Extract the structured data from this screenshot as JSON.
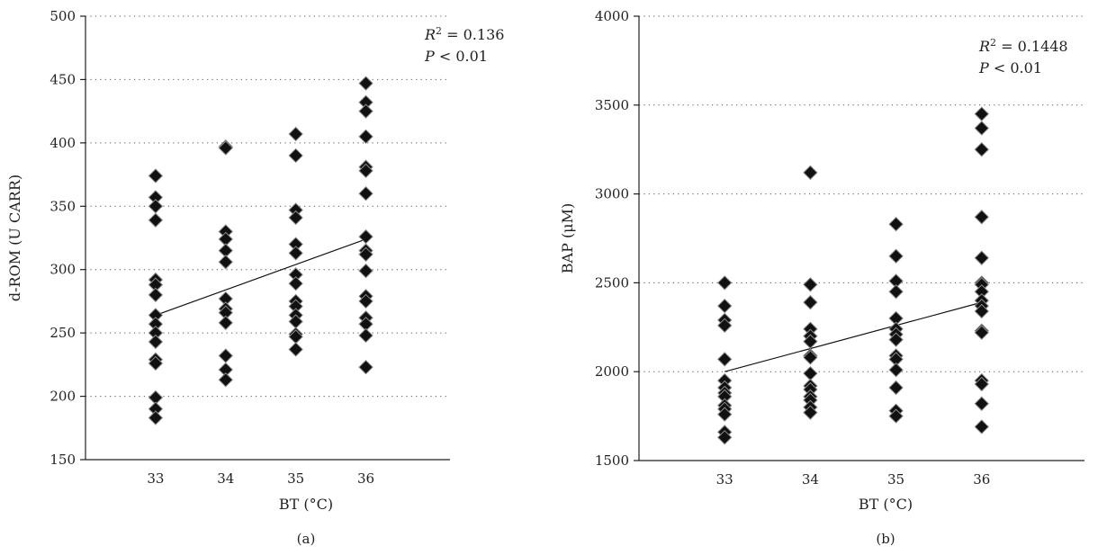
{
  "chart_data": [
    {
      "panel_label": "(a)",
      "type": "scatter",
      "xlabel": "BT (°C)",
      "ylabel": "d-ROM (U CARR)",
      "xlim": [
        32,
        37.2
      ],
      "ylim": [
        150,
        500
      ],
      "x_ticks": [
        33,
        34,
        35,
        36
      ],
      "y_ticks": [
        150,
        200,
        250,
        300,
        350,
        400,
        450,
        500
      ],
      "grid": "horizontal dotted",
      "annotation": {
        "r2_label": "R",
        "r2_sup": "2",
        "r2_value": " = 0.136",
        "p_label": "P",
        "p_value": " < 0.01"
      },
      "points": [
        [
          33,
          374
        ],
        [
          33,
          357
        ],
        [
          33,
          350
        ],
        [
          33,
          339
        ],
        [
          33,
          292
        ],
        [
          33,
          288
        ],
        [
          33,
          280
        ],
        [
          33,
          264
        ],
        [
          33,
          257
        ],
        [
          33,
          250
        ],
        [
          33,
          243
        ],
        [
          33,
          229
        ],
        [
          33,
          226
        ],
        [
          33,
          199
        ],
        [
          33,
          190
        ],
        [
          33,
          183
        ],
        [
          34,
          397
        ],
        [
          34,
          396
        ],
        [
          34,
          330
        ],
        [
          34,
          324
        ],
        [
          34,
          315
        ],
        [
          34,
          306
        ],
        [
          34,
          277
        ],
        [
          34,
          269
        ],
        [
          34,
          266
        ],
        [
          34,
          258
        ],
        [
          34,
          232
        ],
        [
          34,
          221
        ],
        [
          34,
          213
        ],
        [
          35,
          407
        ],
        [
          35,
          390
        ],
        [
          35,
          347
        ],
        [
          35,
          341
        ],
        [
          35,
          320
        ],
        [
          35,
          313
        ],
        [
          35,
          296
        ],
        [
          35,
          289
        ],
        [
          35,
          275
        ],
        [
          35,
          271
        ],
        [
          35,
          264
        ],
        [
          35,
          259
        ],
        [
          35,
          249
        ],
        [
          35,
          247
        ],
        [
          35,
          237
        ],
        [
          36,
          447
        ],
        [
          36,
          432
        ],
        [
          36,
          425
        ],
        [
          36,
          405
        ],
        [
          36,
          381
        ],
        [
          36,
          378
        ],
        [
          36,
          360
        ],
        [
          36,
          326
        ],
        [
          36,
          315
        ],
        [
          36,
          312
        ],
        [
          36,
          299
        ],
        [
          36,
          279
        ],
        [
          36,
          275
        ],
        [
          36,
          262
        ],
        [
          36,
          257
        ],
        [
          36,
          248
        ],
        [
          36,
          223
        ]
      ],
      "trend_line": [
        [
          33,
          264
        ],
        [
          36,
          324
        ]
      ]
    },
    {
      "panel_label": "(b)",
      "type": "scatter",
      "xlabel": "BT (°C)",
      "ylabel": "BAP (μM)",
      "xlim": [
        32,
        37.2
      ],
      "ylim": [
        1500,
        4000
      ],
      "x_ticks": [
        33,
        34,
        35,
        36
      ],
      "y_ticks": [
        1500,
        2000,
        2500,
        3000,
        3500,
        4000
      ],
      "grid": "horizontal dotted",
      "annotation": {
        "r2_label": "R",
        "r2_sup": "2",
        "r2_value": " = 0.1448",
        "p_label": "P",
        "p_value": " < 0.01"
      },
      "points": [
        [
          33,
          2500
        ],
        [
          33,
          2370
        ],
        [
          33,
          2290
        ],
        [
          33,
          2260
        ],
        [
          33,
          2070
        ],
        [
          33,
          1950
        ],
        [
          33,
          1910
        ],
        [
          33,
          1880
        ],
        [
          33,
          1860
        ],
        [
          33,
          1810
        ],
        [
          33,
          1790
        ],
        [
          33,
          1760
        ],
        [
          33,
          1660
        ],
        [
          33,
          1630
        ],
        [
          34,
          3120
        ],
        [
          34,
          2490
        ],
        [
          34,
          2390
        ],
        [
          34,
          2240
        ],
        [
          34,
          2200
        ],
        [
          34,
          2170
        ],
        [
          34,
          2090
        ],
        [
          34,
          2080
        ],
        [
          34,
          1990
        ],
        [
          34,
          1920
        ],
        [
          34,
          1900
        ],
        [
          34,
          1860
        ],
        [
          34,
          1840
        ],
        [
          34,
          1800
        ],
        [
          34,
          1770
        ],
        [
          35,
          2830
        ],
        [
          35,
          2650
        ],
        [
          35,
          2510
        ],
        [
          35,
          2450
        ],
        [
          35,
          2300
        ],
        [
          35,
          2240
        ],
        [
          35,
          2210
        ],
        [
          35,
          2180
        ],
        [
          35,
          2090
        ],
        [
          35,
          2070
        ],
        [
          35,
          2010
        ],
        [
          35,
          1910
        ],
        [
          35,
          1780
        ],
        [
          35,
          1750
        ],
        [
          36,
          3450
        ],
        [
          36,
          3370
        ],
        [
          36,
          3250
        ],
        [
          36,
          2870
        ],
        [
          36,
          2640
        ],
        [
          36,
          2500
        ],
        [
          36,
          2490
        ],
        [
          36,
          2450
        ],
        [
          36,
          2400
        ],
        [
          36,
          2370
        ],
        [
          36,
          2340
        ],
        [
          36,
          2230
        ],
        [
          36,
          2220
        ],
        [
          36,
          1950
        ],
        [
          36,
          1930
        ],
        [
          36,
          1820
        ],
        [
          36,
          1690
        ]
      ],
      "trend_line": [
        [
          33,
          2000
        ],
        [
          36,
          2390
        ]
      ]
    }
  ]
}
